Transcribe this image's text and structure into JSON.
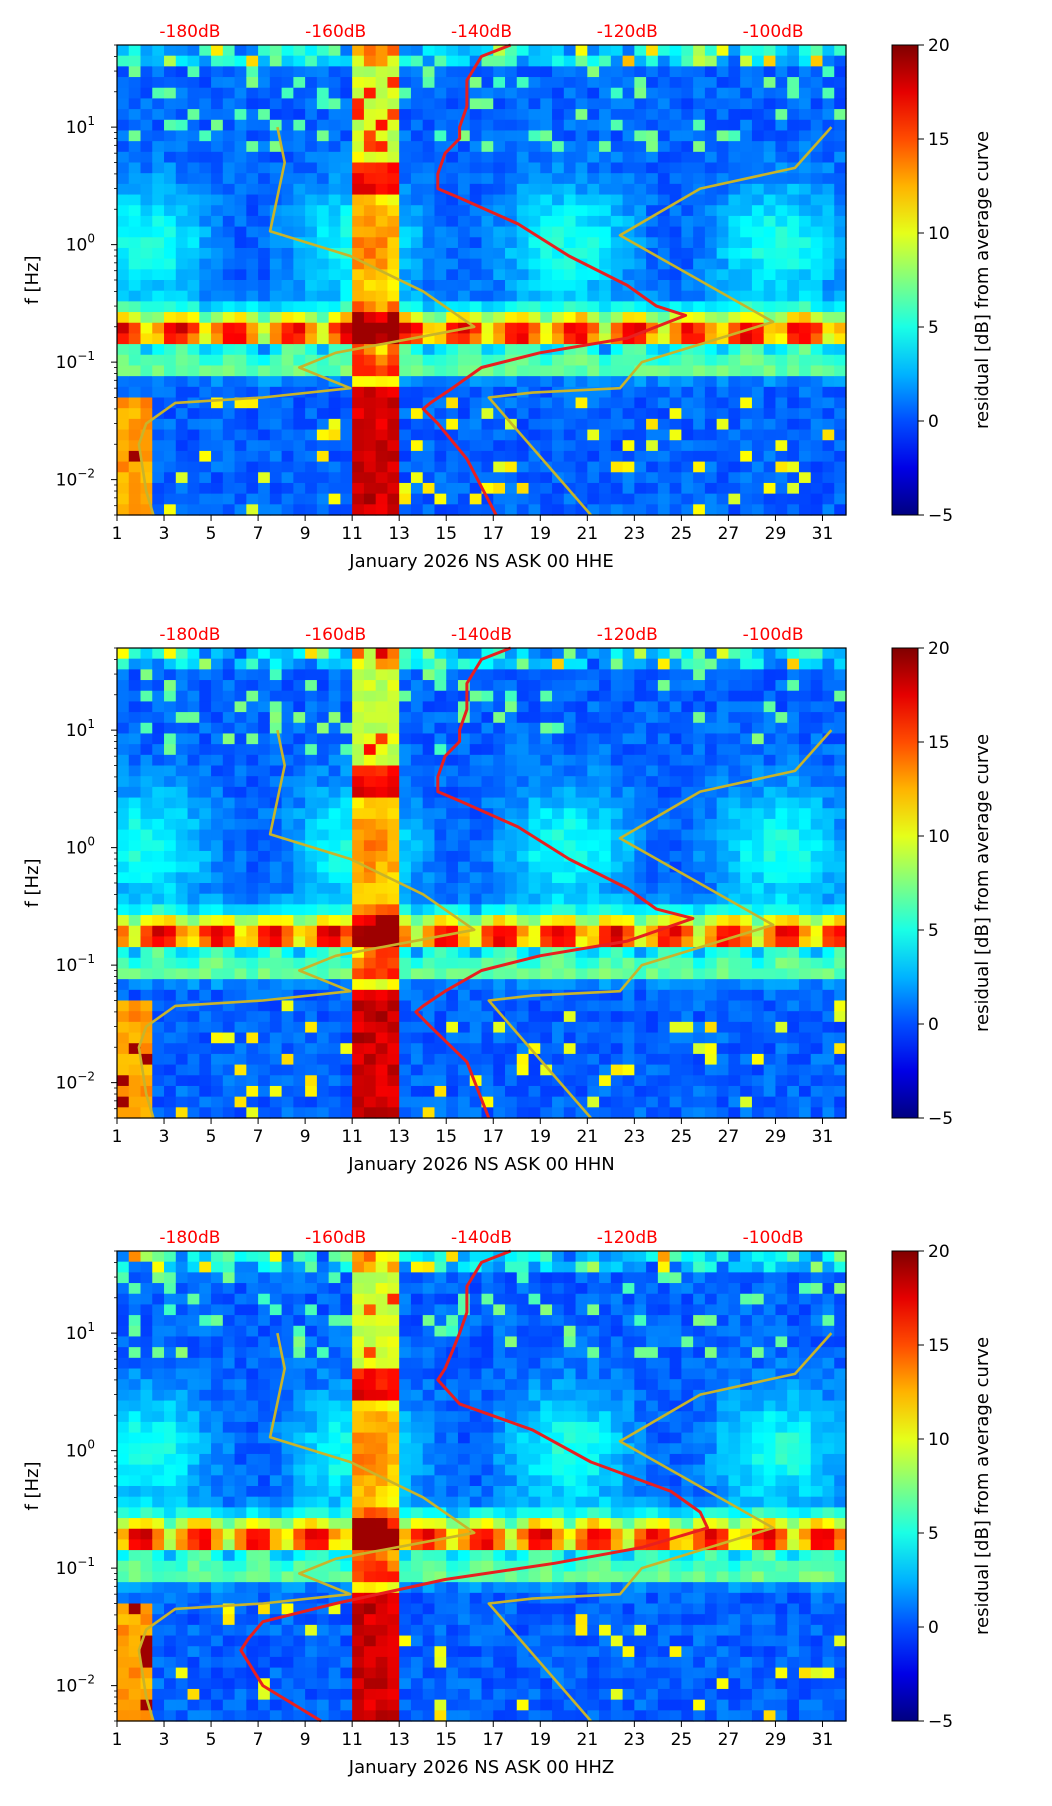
{
  "colormap": "jet",
  "charts": [
    {
      "type": "heatmap",
      "title": "",
      "xlabel": "January 2026 NS ASK 00 HHE",
      "ylabel": "f [Hz]",
      "colorbar_label": "residual [dB] from average curve"
    },
    {
      "type": "heatmap",
      "title": "",
      "xlabel": "January 2026 NS ASK 00 HHN",
      "ylabel": "f [Hz]",
      "colorbar_label": "residual [dB] from average curve"
    },
    {
      "type": "heatmap",
      "title": "",
      "xlabel": "January 2026 NS ASK 00 HHZ",
      "ylabel": "f [Hz]",
      "colorbar_label": "residual [dB] from average curve"
    }
  ],
  "chart_data": [
    {
      "type": "heatmap",
      "xlabel": "January 2026 NS ASK 00 HHE",
      "ylabel": "f [Hz]",
      "x_ticks": [
        "1",
        "3",
        "5",
        "7",
        "9",
        "11",
        "13",
        "15",
        "17",
        "19",
        "21",
        "23",
        "25",
        "27",
        "29",
        "31"
      ],
      "xlim": [
        1,
        32
      ],
      "y_scale": "log",
      "ylim": [
        0.005,
        50
      ],
      "y_ticks": [
        "10^-2",
        "10^-1",
        "10^0",
        "10^1"
      ],
      "top_axis_ticks": [
        "-180dB",
        "-160dB",
        "-140dB",
        "-120dB",
        "-100dB"
      ],
      "top_axis_range_db": [
        -190,
        -90
      ],
      "colorbar": {
        "label": "residual [dB] from average curve",
        "range": [
          -5,
          20
        ],
        "ticks": [
          "−5",
          "0",
          "5",
          "10",
          "15",
          "20"
        ]
      },
      "series": [
        {
          "name": "station noise curve",
          "color": "#e81f1f",
          "points": [
            [
              -136,
              50
            ],
            [
              -140,
              40
            ],
            [
              -142,
              25
            ],
            [
              -142,
              15
            ],
            [
              -143,
              10
            ],
            [
              -143,
              8
            ],
            [
              -145,
              6
            ],
            [
              -146,
              4
            ],
            [
              -146,
              3
            ],
            [
              -143,
              2.5
            ],
            [
              -135,
              1.5
            ],
            [
              -128,
              0.8
            ],
            [
              -120,
              0.45
            ],
            [
              -116,
              0.3
            ],
            [
              -112,
              0.25
            ],
            [
              -120,
              0.16
            ],
            [
              -132,
              0.12
            ],
            [
              -140,
              0.09
            ],
            [
              -144,
              0.06
            ],
            [
              -147,
              0.045
            ],
            [
              -148,
              0.04
            ],
            [
              -146,
              0.03
            ],
            [
              -142,
              0.015
            ],
            [
              -138,
              0.005
            ]
          ]
        },
        {
          "name": "noise model (low)",
          "color": "#c8b42a",
          "points": [
            [
              -168,
              10
            ],
            [
              -167,
              5
            ],
            [
              -169,
              1.3
            ],
            [
              -158,
              0.8
            ],
            [
              -148,
              0.4
            ],
            [
              -141,
              0.2
            ],
            [
              -160,
              0.12
            ],
            [
              -165,
              0.09
            ],
            [
              -158,
              0.06
            ],
            [
              -170,
              0.05
            ],
            [
              -182,
              0.045
            ],
            [
              -186,
              0.03
            ],
            [
              -187,
              0.02
            ],
            [
              -186,
              0.008
            ],
            [
              -185,
              0.005
            ]
          ]
        },
        {
          "name": "noise model (high)",
          "color": "#c8b42a",
          "points": [
            [
              -92,
              10
            ],
            [
              -97,
              4.5
            ],
            [
              -110,
              3
            ],
            [
              -121,
              1.2
            ],
            [
              -100,
              0.22
            ],
            [
              -118,
              0.1
            ],
            [
              -121,
              0.06
            ],
            [
              -133,
              0.055
            ],
            [
              -139,
              0.05
            ],
            [
              -125,
              0.005
            ]
          ]
        }
      ]
    },
    {
      "type": "heatmap",
      "xlabel": "January 2026 NS ASK 00 HHN",
      "ylabel": "f [Hz]",
      "x_ticks": [
        "1",
        "3",
        "5",
        "7",
        "9",
        "11",
        "13",
        "15",
        "17",
        "19",
        "21",
        "23",
        "25",
        "27",
        "29",
        "31"
      ],
      "xlim": [
        1,
        32
      ],
      "y_scale": "log",
      "ylim": [
        0.005,
        50
      ],
      "y_ticks": [
        "10^-2",
        "10^-1",
        "10^0",
        "10^1"
      ],
      "top_axis_ticks": [
        "-180dB",
        "-160dB",
        "-140dB",
        "-120dB",
        "-100dB"
      ],
      "top_axis_range_db": [
        -190,
        -90
      ],
      "colorbar": {
        "label": "residual [dB] from average curve",
        "range": [
          -5,
          20
        ],
        "ticks": [
          "−5",
          "0",
          "5",
          "10",
          "15",
          "20"
        ]
      },
      "series": [
        {
          "name": "station noise curve",
          "color": "#e81f1f",
          "points": [
            [
              -136,
              50
            ],
            [
              -140,
              40
            ],
            [
              -142,
              25
            ],
            [
              -142,
              15
            ],
            [
              -143,
              10
            ],
            [
              -143,
              8
            ],
            [
              -145,
              6
            ],
            [
              -146,
              4
            ],
            [
              -146,
              3
            ],
            [
              -143,
              2.5
            ],
            [
              -135,
              1.5
            ],
            [
              -128,
              0.8
            ],
            [
              -120,
              0.45
            ],
            [
              -116,
              0.3
            ],
            [
              -111,
              0.25
            ],
            [
              -120,
              0.16
            ],
            [
              -132,
              0.12
            ],
            [
              -140,
              0.09
            ],
            [
              -145,
              0.06
            ],
            [
              -148,
              0.045
            ],
            [
              -149,
              0.04
            ],
            [
              -147,
              0.03
            ],
            [
              -142,
              0.015
            ],
            [
              -139,
              0.005
            ]
          ]
        },
        {
          "name": "noise model (low)",
          "color": "#c8b42a",
          "points": [
            [
              -168,
              10
            ],
            [
              -167,
              5
            ],
            [
              -169,
              1.3
            ],
            [
              -158,
              0.8
            ],
            [
              -148,
              0.4
            ],
            [
              -141,
              0.2
            ],
            [
              -160,
              0.12
            ],
            [
              -165,
              0.09
            ],
            [
              -158,
              0.06
            ],
            [
              -170,
              0.05
            ],
            [
              -182,
              0.045
            ],
            [
              -186,
              0.03
            ],
            [
              -187,
              0.02
            ],
            [
              -186,
              0.008
            ],
            [
              -185,
              0.005
            ]
          ]
        },
        {
          "name": "noise model (high)",
          "color": "#c8b42a",
          "points": [
            [
              -92,
              10
            ],
            [
              -97,
              4.5
            ],
            [
              -110,
              3
            ],
            [
              -121,
              1.2
            ],
            [
              -100,
              0.22
            ],
            [
              -118,
              0.1
            ],
            [
              -121,
              0.06
            ],
            [
              -133,
              0.055
            ],
            [
              -139,
              0.05
            ],
            [
              -125,
              0.005
            ]
          ]
        }
      ]
    },
    {
      "type": "heatmap",
      "xlabel": "January 2026 NS ASK 00 HHZ",
      "ylabel": "f [Hz]",
      "x_ticks": [
        "1",
        "3",
        "5",
        "7",
        "9",
        "11",
        "13",
        "15",
        "17",
        "19",
        "21",
        "23",
        "25",
        "27",
        "29",
        "31"
      ],
      "xlim": [
        1,
        32
      ],
      "y_scale": "log",
      "ylim": [
        0.005,
        50
      ],
      "y_ticks": [
        "10^-2",
        "10^-1",
        "10^0",
        "10^1"
      ],
      "top_axis_ticks": [
        "-180dB",
        "-160dB",
        "-140dB",
        "-120dB",
        "-100dB"
      ],
      "top_axis_range_db": [
        -190,
        -90
      ],
      "colorbar": {
        "label": "residual [dB] from average curve",
        "range": [
          -5,
          20
        ],
        "ticks": [
          "−5",
          "0",
          "5",
          "10",
          "15",
          "20"
        ]
      },
      "series": [
        {
          "name": "station noise curve",
          "color": "#e81f1f",
          "points": [
            [
              -136,
              50
            ],
            [
              -140,
              40
            ],
            [
              -142,
              25
            ],
            [
              -142,
              15
            ],
            [
              -143,
              10
            ],
            [
              -144,
              7
            ],
            [
              -145,
              5
            ],
            [
              -146,
              4
            ],
            [
              -143,
              2.5
            ],
            [
              -133,
              1.5
            ],
            [
              -125,
              0.8
            ],
            [
              -114,
              0.45
            ],
            [
              -110,
              0.3
            ],
            [
              -109,
              0.22
            ],
            [
              -118,
              0.15
            ],
            [
              -130,
              0.11
            ],
            [
              -145,
              0.08
            ],
            [
              -160,
              0.05
            ],
            [
              -170,
              0.035
            ],
            [
              -172,
              0.025
            ],
            [
              -173,
              0.02
            ],
            [
              -170,
              0.01
            ],
            [
              -162,
              0.005
            ]
          ]
        },
        {
          "name": "noise model (low)",
          "color": "#c8b42a",
          "points": [
            [
              -168,
              10
            ],
            [
              -167,
              5
            ],
            [
              -169,
              1.3
            ],
            [
              -158,
              0.8
            ],
            [
              -148,
              0.4
            ],
            [
              -141,
              0.2
            ],
            [
              -160,
              0.12
            ],
            [
              -165,
              0.09
            ],
            [
              -158,
              0.06
            ],
            [
              -170,
              0.05
            ],
            [
              -182,
              0.045
            ],
            [
              -186,
              0.03
            ],
            [
              -187,
              0.02
            ],
            [
              -186,
              0.008
            ],
            [
              -185,
              0.005
            ]
          ]
        },
        {
          "name": "noise model (high)",
          "color": "#c8b42a",
          "points": [
            [
              -92,
              10
            ],
            [
              -97,
              4.5
            ],
            [
              -110,
              3
            ],
            [
              -121,
              1.2
            ],
            [
              -100,
              0.22
            ],
            [
              -118,
              0.1
            ],
            [
              -121,
              0.06
            ],
            [
              -133,
              0.055
            ],
            [
              -139,
              0.05
            ],
            [
              -125,
              0.005
            ]
          ]
        }
      ]
    }
  ]
}
